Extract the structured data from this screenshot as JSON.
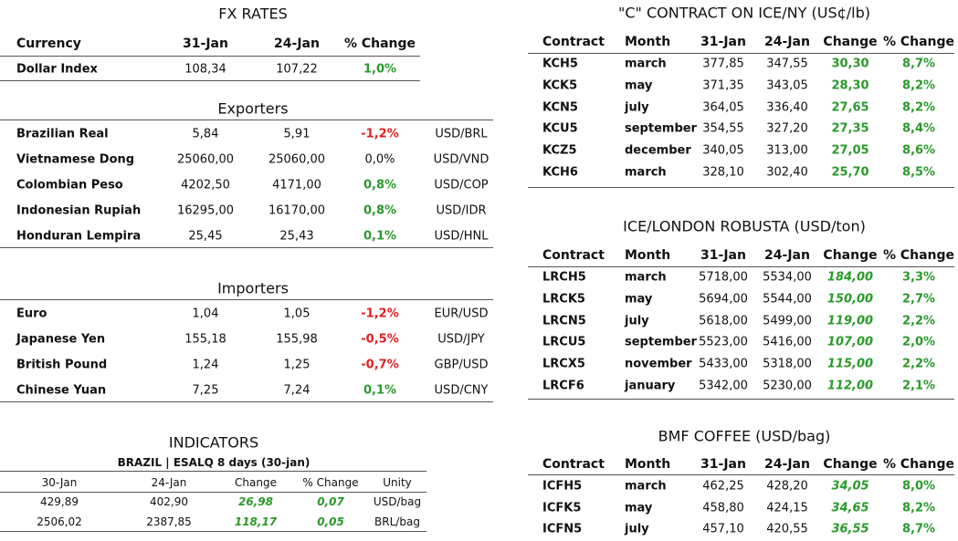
{
  "fx_rates": {
    "title": "FX RATES",
    "headers": [
      "Currency",
      "31-Jan",
      "24-Jan",
      "% Change"
    ],
    "rows": [
      [
        "Dollar Index",
        "108,34",
        "107,22",
        "1,0%"
      ]
    ]
  },
  "exporters": {
    "title": "Exporters",
    "rows": [
      [
        "Brazilian Real",
        "5,84",
        "5,91",
        "-1,2%",
        "USD/BRL"
      ],
      [
        "Vietnamese Dong",
        "25060,00",
        "25060,00",
        "0,0%",
        "USD/VND"
      ],
      [
        "Colombian Peso",
        "4202,50",
        "4171,00",
        "0,8%",
        "USD/COP"
      ],
      [
        "Indonesian Rupiah",
        "16295,00",
        "16170,00",
        "0,8%",
        "USD/IDR"
      ],
      [
        "Honduran Lempira",
        "25,45",
        "25,43",
        "0,1%",
        "USD/HNL"
      ]
    ]
  },
  "importers": {
    "title": "Importers",
    "rows": [
      [
        "Euro",
        "1,04",
        "1,05",
        "-1,2%",
        "EUR/USD"
      ],
      [
        "Japanese Yen",
        "155,18",
        "155,98",
        "-0,5%",
        "USD/JPY"
      ],
      [
        "British Pound",
        "1,24",
        "1,25",
        "-0,7%",
        "GBP/USD"
      ],
      [
        "Chinese Yuan",
        "7,25",
        "7,24",
        "0,1%",
        "USD/CNY"
      ]
    ]
  },
  "indicators": {
    "title": "INDICATORS",
    "subtitle": "BRAZIL | ESALQ 8 days (30-jan)",
    "headers": [
      "30-Jan",
      "24-Jan",
      "Change",
      "% Change",
      "Unity"
    ],
    "rows": [
      [
        "429,89",
        "402,90",
        "26,98",
        "0,07",
        "USD/bag"
      ],
      [
        "2506,02",
        "2387,85",
        "118,17",
        "0,05",
        "BRL/bag"
      ]
    ]
  },
  "coffee_tables": [
    {
      "title": "\"C\" CONTRACT ON ICE/NY (US¢/lb)",
      "headers": [
        "Contract",
        "Month",
        "31-Jan",
        "24-Jan",
        "Change",
        "% Change"
      ],
      "rows": [
        [
          "KCH5",
          "march",
          "377,85",
          "347,55",
          "30,30",
          "8,7%"
        ],
        [
          "KCK5",
          "may",
          "371,35",
          "343,05",
          "28,30",
          "8,2%"
        ],
        [
          "KCN5",
          "july",
          "364,05",
          "336,40",
          "27,65",
          "8,2%"
        ],
        [
          "KCU5",
          "september",
          "354,55",
          "327,20",
          "27,35",
          "8,4%"
        ],
        [
          "KCZ5",
          "december",
          "340,05",
          "313,00",
          "27,05",
          "8,6%"
        ],
        [
          "KCH6",
          "march",
          "328,10",
          "302,40",
          "25,70",
          "8,5%"
        ]
      ]
    },
    {
      "title": "ICE/LONDON ROBUSTA (USD/ton)",
      "headers": [
        "Contract",
        "Month",
        "31-Jan",
        "24-Jan",
        "Change",
        "% Change"
      ],
      "rows": [
        [
          "LRCH5",
          "march",
          "5718,00",
          "5534,00",
          "184,00",
          "3,3%"
        ],
        [
          "LRCK5",
          "may",
          "5694,00",
          "5544,00",
          "150,00",
          "2,7%"
        ],
        [
          "LRCN5",
          "july",
          "5618,00",
          "5499,00",
          "119,00",
          "2,2%"
        ],
        [
          "LRCU5",
          "september",
          "5523,00",
          "5416,00",
          "107,00",
          "2,0%"
        ],
        [
          "LRCX5",
          "november",
          "5433,00",
          "5318,00",
          "115,00",
          "2,2%"
        ],
        [
          "LRCF6",
          "january",
          "5342,00",
          "5230,00",
          "112,00",
          "2,1%"
        ]
      ]
    },
    {
      "title": "BMF COFFEE (USD/bag)",
      "headers": [
        "Contract",
        "Month",
        "31-Jan",
        "24-Jan",
        "Change",
        "% Change"
      ],
      "rows": [
        [
          "ICFH5",
          "march",
          "462,25",
          "428,20",
          "34,05",
          "8,0%"
        ],
        [
          "ICFK5",
          "may",
          "458,80",
          "424,15",
          "34,65",
          "8,2%"
        ],
        [
          "ICFN5",
          "july",
          "457,10",
          "420,55",
          "36,55",
          "8,7%"
        ]
      ]
    }
  ]
}
